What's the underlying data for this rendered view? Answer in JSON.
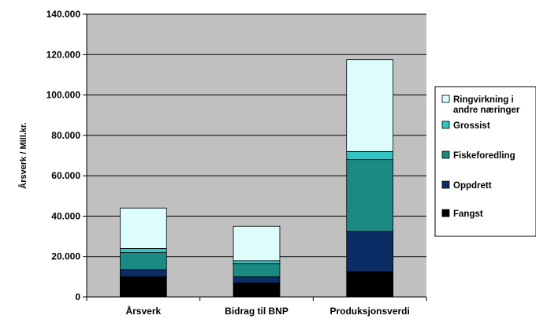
{
  "chart_data": {
    "type": "bar",
    "stacked": true,
    "categories": [
      "Årsverk",
      "Bidrag til BNP",
      "Produksjonsverdi"
    ],
    "series": [
      {
        "name": "Fangst",
        "values": [
          10000,
          7000,
          12500
        ],
        "color": "#000000"
      },
      {
        "name": "Oppdrett",
        "values": [
          3500,
          3000,
          20000
        ],
        "color": "#0a2d66"
      },
      {
        "name": "Fiskeforedling",
        "values": [
          8500,
          6500,
          35500
        ],
        "color": "#1b8a82"
      },
      {
        "name": "Grossist",
        "values": [
          2000,
          1500,
          4000
        ],
        "color": "#32c4c2"
      },
      {
        "name": "Ringvirkning i andre næringer",
        "values": [
          20000,
          17000,
          45500
        ],
        "color": "#ddfcfc"
      }
    ],
    "ylabel": "Årsverk / Mill.kr.",
    "xlabel": "",
    "title": "",
    "ylim": [
      0,
      140000
    ],
    "yticks": [
      0,
      20000,
      40000,
      60000,
      80000,
      100000,
      120000,
      140000
    ],
    "ytick_labels": [
      "0",
      "20.000",
      "40.000",
      "60.000",
      "80.000",
      "100.000",
      "120.000",
      "140.000"
    ],
    "grid": true,
    "legend_position": "right",
    "legend": {
      "entries_top_to_bottom": [
        {
          "series": "Ringvirkning i andre næringer",
          "lines": [
            "Ringvirkning i",
            "andre næringer"
          ]
        },
        {
          "series": "Grossist",
          "lines": [
            "Grossist"
          ]
        },
        {
          "series": "Fiskeforedling",
          "lines": [
            "Fiskeforedling"
          ]
        },
        {
          "series": "Oppdrett",
          "lines": [
            "Oppdrett"
          ]
        },
        {
          "series": "Fangst",
          "lines": [
            "Fangst"
          ]
        }
      ]
    },
    "plot_background": "#c0c0c0"
  }
}
